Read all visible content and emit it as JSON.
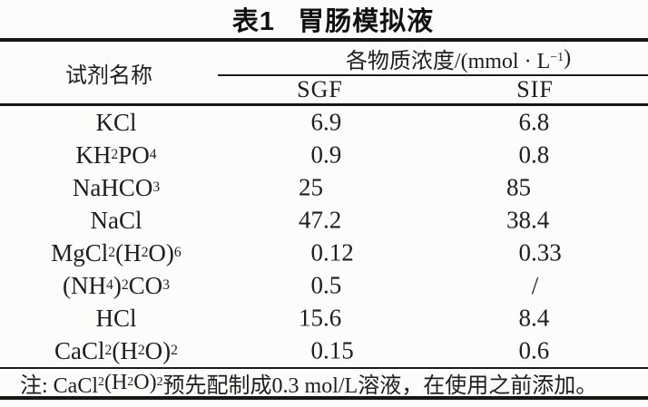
{
  "title": {
    "prefix": "表1",
    "name": "胃肠模拟液"
  },
  "table": {
    "reagent_header": "试剂名称",
    "concentration_header": "各物质浓度/(mmol · L^−1^)",
    "columns": [
      "SGF",
      "SIF"
    ],
    "rows": [
      {
        "reagent": "KCl",
        "sgf": "6.9",
        "sif": "6.8"
      },
      {
        "reagent": "KH~2~PO~4~",
        "sgf": "0.9",
        "sif": "0.8"
      },
      {
        "reagent": "NaHCO~3~",
        "sgf": "25",
        "sif": "85"
      },
      {
        "reagent": "NaCl",
        "sgf": "47.2",
        "sif": "38.4"
      },
      {
        "reagent": "MgCl~2~(H~2~O)~6~",
        "sgf": "0.12",
        "sif": "0.33"
      },
      {
        "reagent": "(NH~4~)~2~CO~3~",
        "sgf": "0.5",
        "sif": "/"
      },
      {
        "reagent": "HCl",
        "sgf": "15.6",
        "sif": "8.4"
      },
      {
        "reagent": "CaCl~2~(H~2~O)~2~",
        "sgf": "0.15",
        "sif": "0.6"
      }
    ],
    "note": "注: CaCl~2~(H~2~O)~2~预先配制成0.3 mol/L溶液，在使用之前添加。"
  },
  "colors": {
    "text": "#1e1e1e",
    "rule": "#161616",
    "background": "#fcfcfb"
  }
}
